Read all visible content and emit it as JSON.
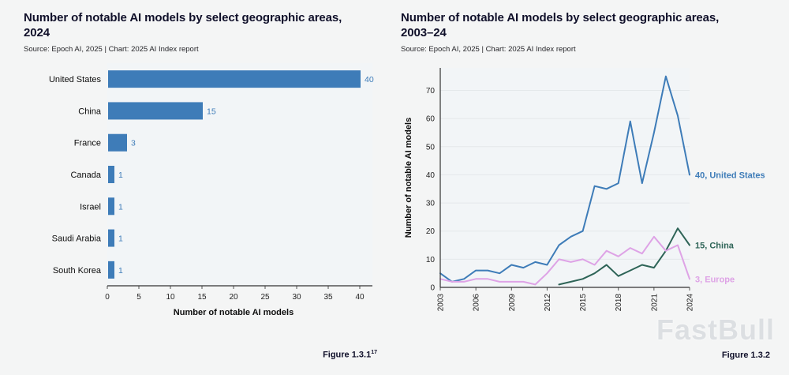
{
  "page": {
    "watermark": "FastBull",
    "background": "#f4f5f5"
  },
  "left_chart": {
    "title": "Number of notable AI models by select geographic areas, 2024",
    "source": "Source: Epoch AI, 2025 | Chart: 2025 AI Index report",
    "figure_label": "Figure 1.3.1",
    "figure_label_sup": "17"
  },
  "right_chart": {
    "title": "Number of notable AI models by select geographic areas, 2003–24",
    "source": "Source: Epoch AI, 2025 | Chart: 2025 AI Index report",
    "figure_label": "Figure 1.3.2"
  },
  "chart_data": [
    {
      "type": "bar",
      "orientation": "horizontal",
      "title": "Number of notable AI models by select geographic areas, 2024",
      "categories": [
        "United States",
        "China",
        "France",
        "Canada",
        "Israel",
        "Saudi Arabia",
        "South Korea"
      ],
      "values": [
        40,
        15,
        3,
        1,
        1,
        1,
        1
      ],
      "xlabel": "Number of notable AI models",
      "xlim": [
        0,
        40
      ],
      "xticks": [
        0,
        5,
        10,
        15,
        20,
        25,
        30,
        35,
        40
      ],
      "grid": false,
      "bar_color": "#3e7cb8",
      "value_label_color": "#3e7cb8"
    },
    {
      "type": "line",
      "title": "Number of notable AI models by select geographic areas, 2003–24",
      "ylabel": "Number of notable AI models",
      "ylim": [
        0,
        78
      ],
      "yticks": [
        0,
        10,
        20,
        30,
        40,
        50,
        60,
        70
      ],
      "x": [
        2003,
        2004,
        2005,
        2006,
        2007,
        2008,
        2009,
        2010,
        2011,
        2012,
        2013,
        2014,
        2015,
        2016,
        2017,
        2018,
        2019,
        2020,
        2021,
        2022,
        2023,
        2024
      ],
      "xticks": [
        2003,
        2006,
        2009,
        2012,
        2015,
        2018,
        2021,
        2024
      ],
      "grid": true,
      "legend_position": "end-of-line labels",
      "series": [
        {
          "name": "United States",
          "color": "#3e7cb8",
          "end_label": "40, United States",
          "values": [
            5,
            2,
            3,
            6,
            6,
            5,
            8,
            7,
            9,
            8,
            15,
            18,
            20,
            36,
            35,
            37,
            59,
            37,
            55,
            75,
            61,
            40
          ]
        },
        {
          "name": "China",
          "color": "#2e6457",
          "end_label": "15, China",
          "values": [
            null,
            null,
            null,
            null,
            null,
            null,
            null,
            null,
            null,
            null,
            1,
            2,
            3,
            5,
            8,
            4,
            6,
            8,
            7,
            13,
            21,
            15
          ]
        },
        {
          "name": "Europe",
          "color": "#dea3e6",
          "end_label": "3, Europe",
          "values": [
            3,
            2,
            2,
            3,
            3,
            2,
            2,
            2,
            1,
            5,
            10,
            9,
            10,
            8,
            13,
            11,
            14,
            12,
            18,
            13,
            15,
            3
          ]
        }
      ]
    }
  ]
}
